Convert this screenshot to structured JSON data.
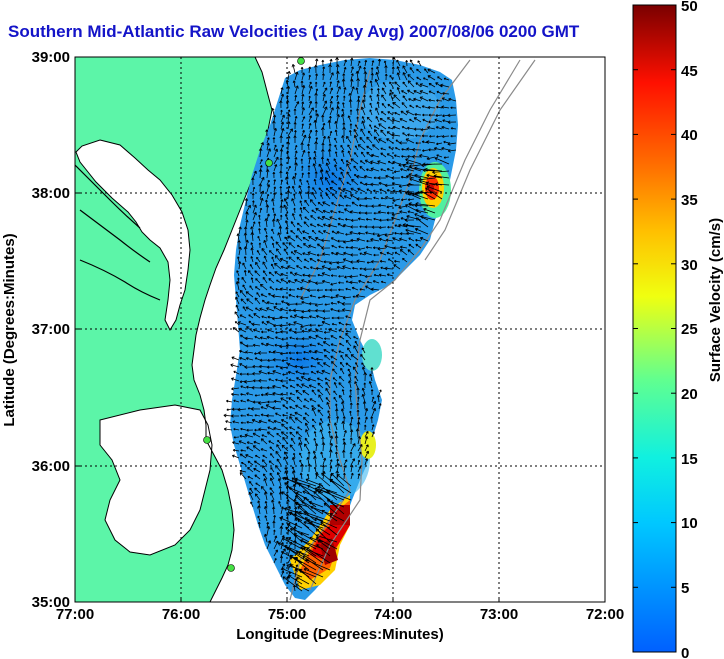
{
  "title": "Southern Mid-Atlantic Raw Velocities (1 Day Avg) 2007/08/06 0200 GMT",
  "map": {
    "xlabel": "Longitude (Degrees:Minutes)",
    "ylabel": "Latitude (Degrees:Minutes)",
    "lon_ticks": [
      "77:00",
      "76:00",
      "75:00",
      "74:00",
      "73:00",
      "72:00"
    ],
    "lat_ticks": [
      "39:00",
      "38:00",
      "37:00",
      "36:00",
      "35:00"
    ],
    "land_color": "#5cf5a8",
    "grid": "dotted"
  },
  "colorbar": {
    "label": "Surface Velocity (cm/s)",
    "ticks": [
      "0",
      "5",
      "10",
      "15",
      "20",
      "25",
      "30",
      "35",
      "40",
      "45",
      "50"
    ],
    "min": 0,
    "max": 50
  }
}
